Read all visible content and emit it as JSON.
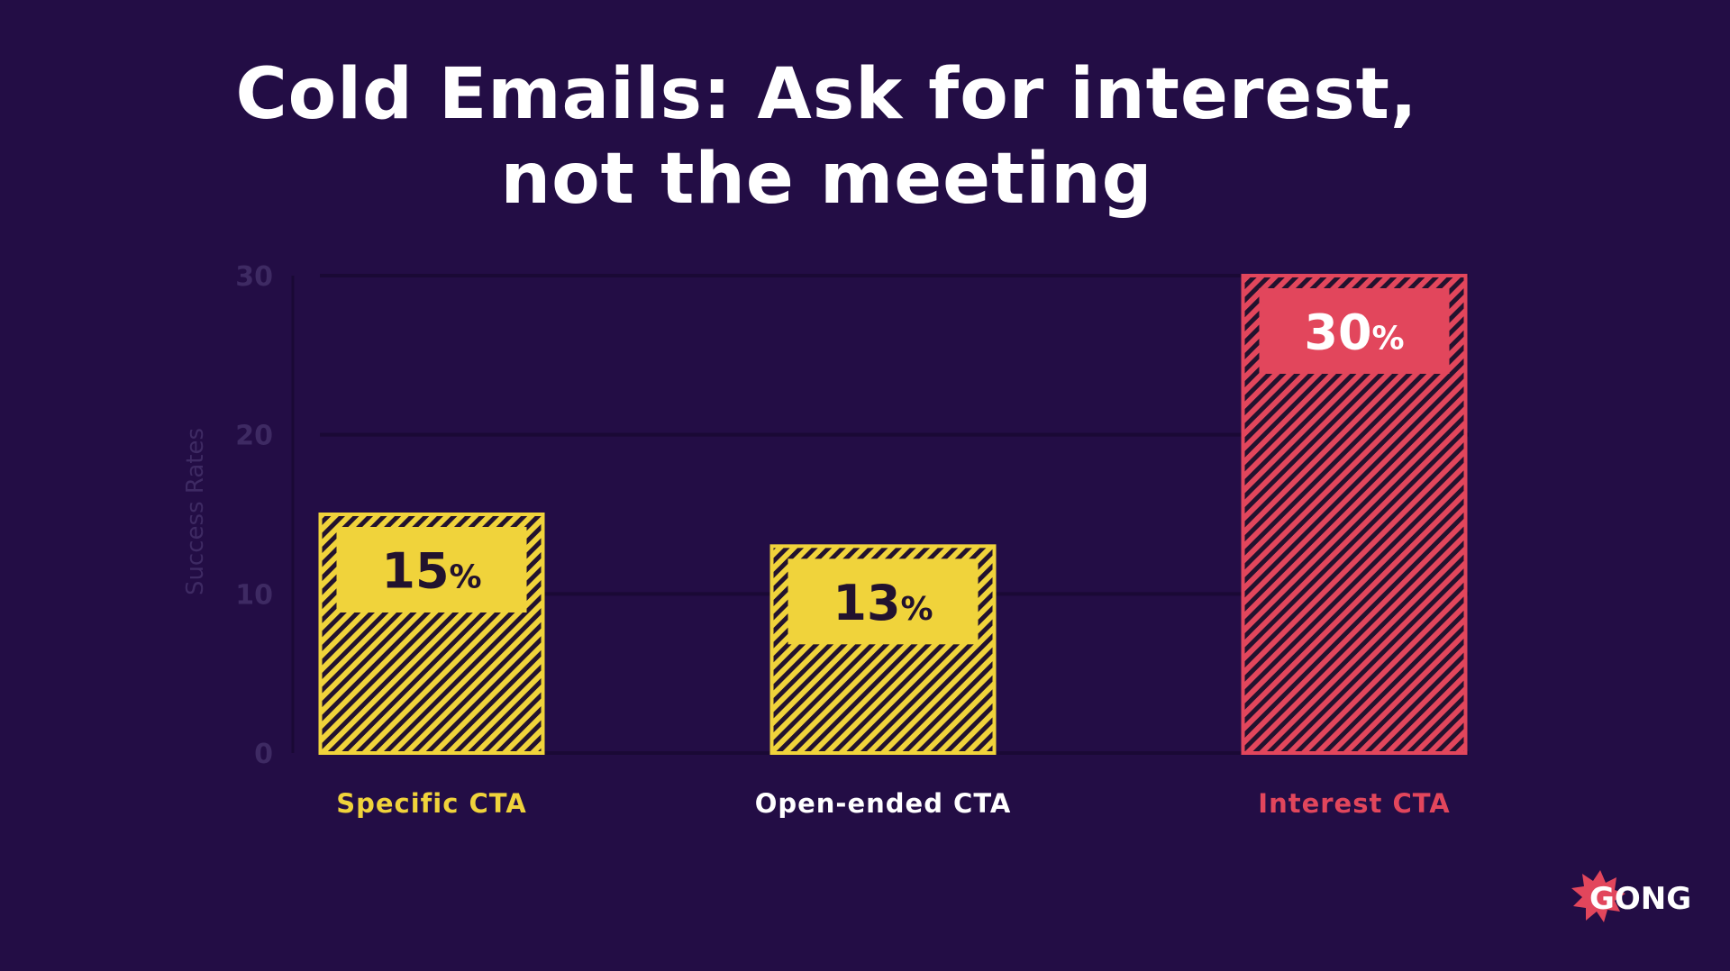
{
  "title_line1": "Cold Emails: Ask for interest,",
  "title_line2": "not the meeting",
  "logo_text": "GONG",
  "colors": {
    "background": "#230d45",
    "gridline": "#1a0935",
    "axis_text": "#3e2a63",
    "yellow": "#f0d33b",
    "red": "#e2465c",
    "white": "#ffffff"
  },
  "chart_data": {
    "type": "bar",
    "categories": [
      "Specific CTA",
      "Open-ended CTA",
      "Interest CTA"
    ],
    "values": [
      15,
      13,
      30
    ],
    "value_labels": [
      "15",
      "13",
      "30"
    ],
    "value_suffix": "%",
    "category_colors": [
      "#f0d33b",
      "#ffffff",
      "#e2465c"
    ],
    "bar_colors": [
      "#f0d33b",
      "#f0d33b",
      "#e2465c"
    ],
    "label_text_colors": [
      "#22122e",
      "#22122e",
      "#ffffff"
    ],
    "ylabel": "Success Rates",
    "ylim": [
      0,
      30
    ],
    "yticks": [
      0,
      10,
      20,
      30
    ],
    "grid": true
  }
}
